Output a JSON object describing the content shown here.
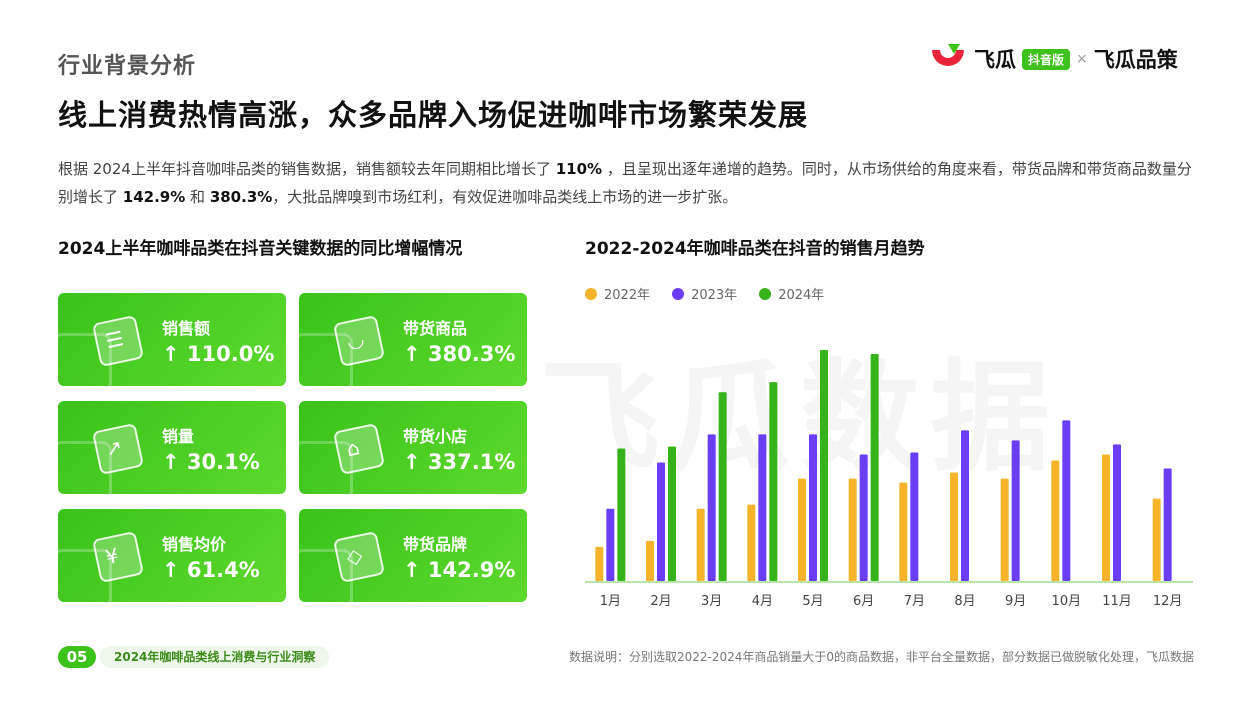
{
  "header": {
    "section_title": "行业背景分析",
    "main_title": "线上消费热情高涨，众多品牌入场促进咖啡市场繁荣发展",
    "logo_brand": "飞瓜",
    "logo_badge": "抖音版",
    "logo_x": "×",
    "logo_partner": "飞瓜品策",
    "brand_colors": {
      "green": "#3cc21a",
      "red": "#e8253a"
    }
  },
  "description": {
    "p1": "根据 2024上半年抖音咖啡品类的销售数据，销售额较去年同期相比增长了 ",
    "v1": "110%",
    "p2": " ，且呈现出逐年递增的趋势。同时，从市场供给的角度来看，带货品牌和带货商品数量分别增长了 ",
    "v2": "142.9%",
    "p3": " 和 ",
    "v3": "380.3%",
    "p4": "，大批品牌嗅到市场红利，有效促进咖啡品类线上市场的进一步扩张。"
  },
  "left_panel": {
    "title": "2024上半年咖啡品类在抖音关键数据的同比增幅情况",
    "cards": [
      {
        "label": "销售额",
        "value": "↑ 110.0%",
        "icon": "receipt-icon"
      },
      {
        "label": "带货商品",
        "value": "↑ 380.3%",
        "icon": "shopping-bag-icon"
      },
      {
        "label": "销量",
        "value": "↑ 30.1%",
        "icon": "trend-chart-icon"
      },
      {
        "label": "带货小店",
        "value": "↑ 337.1%",
        "icon": "store-icon"
      },
      {
        "label": "销售均价",
        "value": "↑ 61.4%",
        "icon": "yuan-coin-icon"
      },
      {
        "label": "带货品牌",
        "value": "↑ 142.9%",
        "icon": "tag-icon"
      }
    ]
  },
  "chart_data": {
    "type": "bar",
    "title": "2022-2024年咖啡品类在抖音的销售月趋势",
    "categories": [
      "1月",
      "2月",
      "3月",
      "4月",
      "5月",
      "6月",
      "7月",
      "8月",
      "9月",
      "10月",
      "11月",
      "12月"
    ],
    "series": [
      {
        "name": "2022年",
        "color": "#f5b42a",
        "values": [
          17,
          20,
          36,
          38,
          51,
          51,
          49,
          54,
          51,
          60,
          63,
          41
        ]
      },
      {
        "name": "2023年",
        "color": "#6a3ef5",
        "values": [
          36,
          59,
          73,
          73,
          73,
          63,
          64,
          75,
          70,
          80,
          68,
          56
        ]
      },
      {
        "name": "2024年",
        "color": "#36b21a",
        "values": [
          66,
          67,
          94,
          99,
          115,
          113,
          null,
          null,
          null,
          null,
          null,
          null
        ]
      }
    ],
    "ylim": [
      0,
      120
    ],
    "grid": false,
    "legend_position": "top-left"
  },
  "watermark": "飞瓜数据",
  "footer": {
    "page_number": "05",
    "report_title": "2024年咖啡品类线上消费与行业洞察",
    "note": "数据说明：分别选取2022-2024年商品销量大于0的商品数据，非平台全量数据，部分数据已做脱敏化处理，飞瓜数据"
  }
}
